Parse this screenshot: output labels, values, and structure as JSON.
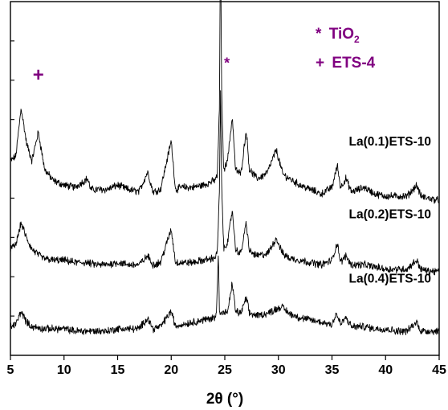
{
  "chart_data": {
    "type": "line",
    "xlabel": "2θ (°)",
    "ylabel": "",
    "xlim": [
      5,
      45
    ],
    "x_ticks": [
      5,
      10,
      15,
      20,
      25,
      30,
      35,
      40,
      45
    ],
    "y_ticks_count": 9,
    "grid": false,
    "legend": {
      "placement": "top-right",
      "color": "#800080",
      "entries": [
        {
          "symbol": "*",
          "text": "TiO",
          "subscript": "2"
        },
        {
          "symbol": "+",
          "text": "ETS-4"
        }
      ]
    },
    "markers": [
      {
        "symbol": "+",
        "x": 7.6,
        "y": 1.24,
        "color": "#800080"
      },
      {
        "symbol": "*",
        "x": 25.2,
        "y": 1.3,
        "color": "#800080"
      }
    ],
    "series": [
      {
        "name": "La(0.1)ETS-10",
        "baseline": 0.72,
        "slope": -0.0008,
        "noise": 0.014,
        "points": [
          [
            5.0,
            0.88
          ],
          [
            5.5,
            0.9
          ],
          [
            6.0,
            1.12
          ],
          [
            6.5,
            0.96
          ],
          [
            7.0,
            0.88
          ],
          [
            7.6,
            1.01
          ],
          [
            8.2,
            0.84
          ],
          [
            9.0,
            0.79
          ],
          [
            10.0,
            0.77
          ],
          [
            11.0,
            0.76
          ],
          [
            12.2,
            0.8
          ],
          [
            12.5,
            0.75
          ],
          [
            14.0,
            0.75
          ],
          [
            15.0,
            0.77
          ],
          [
            16.0,
            0.75
          ],
          [
            17.0,
            0.74
          ],
          [
            17.8,
            0.83
          ],
          [
            18.3,
            0.74
          ],
          [
            19.0,
            0.75
          ],
          [
            20.0,
            0.97
          ],
          [
            20.4,
            0.75
          ],
          [
            21.0,
            0.76
          ],
          [
            22.0,
            0.76
          ],
          [
            23.0,
            0.77
          ],
          [
            24.0,
            0.79
          ],
          [
            24.3,
            0.81
          ],
          [
            24.5,
            1.12
          ],
          [
            24.6,
            1.95
          ],
          [
            24.7,
            1.2
          ],
          [
            24.9,
            0.83
          ],
          [
            25.3,
            0.9
          ],
          [
            25.7,
            1.08
          ],
          [
            26.0,
            0.84
          ],
          [
            26.5,
            0.82
          ],
          [
            27.0,
            1.02
          ],
          [
            27.3,
            0.84
          ],
          [
            28.0,
            0.8
          ],
          [
            28.5,
            0.81
          ],
          [
            29.0,
            0.83
          ],
          [
            29.8,
            0.93
          ],
          [
            30.4,
            0.82
          ],
          [
            31.0,
            0.8
          ],
          [
            32.0,
            0.77
          ],
          [
            33.0,
            0.75
          ],
          [
            34.0,
            0.73
          ],
          [
            35.0,
            0.76
          ],
          [
            35.5,
            0.86
          ],
          [
            35.8,
            0.76
          ],
          [
            36.3,
            0.8
          ],
          [
            36.8,
            0.74
          ],
          [
            37.5,
            0.75
          ],
          [
            38.0,
            0.76
          ],
          [
            39.0,
            0.73
          ],
          [
            40.0,
            0.72
          ],
          [
            41.0,
            0.72
          ],
          [
            42.0,
            0.72
          ],
          [
            42.9,
            0.77
          ],
          [
            43.3,
            0.72
          ],
          [
            44.0,
            0.71
          ],
          [
            45.0,
            0.7
          ]
        ]
      },
      {
        "name": "La(0.2)ETS-10",
        "baseline": 0.4,
        "slope": -0.0008,
        "noise": 0.014,
        "points": [
          [
            5.0,
            0.48
          ],
          [
            5.5,
            0.5
          ],
          [
            6.0,
            0.6
          ],
          [
            6.5,
            0.53
          ],
          [
            7.0,
            0.48
          ],
          [
            8.0,
            0.44
          ],
          [
            9.0,
            0.43
          ],
          [
            10.0,
            0.43
          ],
          [
            11.0,
            0.42
          ],
          [
            12.0,
            0.42
          ],
          [
            13.0,
            0.41
          ],
          [
            14.0,
            0.41
          ],
          [
            15.0,
            0.42
          ],
          [
            16.0,
            0.41
          ],
          [
            17.0,
            0.41
          ],
          [
            17.8,
            0.45
          ],
          [
            18.3,
            0.41
          ],
          [
            19.0,
            0.42
          ],
          [
            20.0,
            0.57
          ],
          [
            20.4,
            0.42
          ],
          [
            21.0,
            0.42
          ],
          [
            22.0,
            0.42
          ],
          [
            23.0,
            0.43
          ],
          [
            24.0,
            0.44
          ],
          [
            24.3,
            0.46
          ],
          [
            24.5,
            0.75
          ],
          [
            24.6,
            1.19
          ],
          [
            24.7,
            0.78
          ],
          [
            24.9,
            0.48
          ],
          [
            25.3,
            0.52
          ],
          [
            25.7,
            0.66
          ],
          [
            26.0,
            0.48
          ],
          [
            26.5,
            0.46
          ],
          [
            27.0,
            0.6
          ],
          [
            27.3,
            0.47
          ],
          [
            28.0,
            0.45
          ],
          [
            29.0,
            0.46
          ],
          [
            29.8,
            0.53
          ],
          [
            30.4,
            0.46
          ],
          [
            31.0,
            0.44
          ],
          [
            32.0,
            0.43
          ],
          [
            33.0,
            0.42
          ],
          [
            34.0,
            0.41
          ],
          [
            35.0,
            0.43
          ],
          [
            35.5,
            0.51
          ],
          [
            35.8,
            0.42
          ],
          [
            36.3,
            0.45
          ],
          [
            36.8,
            0.41
          ],
          [
            38.0,
            0.41
          ],
          [
            39.0,
            0.4
          ],
          [
            40.0,
            0.39
          ],
          [
            41.0,
            0.39
          ],
          [
            42.0,
            0.39
          ],
          [
            42.9,
            0.43
          ],
          [
            43.3,
            0.39
          ],
          [
            44.0,
            0.38
          ],
          [
            45.0,
            0.38
          ]
        ]
      },
      {
        "name": "La(0.4)ETS-10",
        "baseline": 0.12,
        "slope": -0.0005,
        "noise": 0.014,
        "points": [
          [
            5.0,
            0.13
          ],
          [
            5.5,
            0.14
          ],
          [
            6.0,
            0.2
          ],
          [
            6.5,
            0.15
          ],
          [
            7.0,
            0.13
          ],
          [
            8.0,
            0.12
          ],
          [
            9.0,
            0.12
          ],
          [
            10.0,
            0.12
          ],
          [
            11.0,
            0.11
          ],
          [
            12.0,
            0.11
          ],
          [
            13.0,
            0.11
          ],
          [
            14.0,
            0.11
          ],
          [
            15.0,
            0.12
          ],
          [
            16.0,
            0.12
          ],
          [
            17.0,
            0.12
          ],
          [
            17.8,
            0.17
          ],
          [
            18.3,
            0.12
          ],
          [
            19.0,
            0.13
          ],
          [
            20.0,
            0.2
          ],
          [
            20.4,
            0.13
          ],
          [
            21.0,
            0.14
          ],
          [
            22.0,
            0.15
          ],
          [
            23.0,
            0.16
          ],
          [
            24.0,
            0.17
          ],
          [
            24.2,
            0.18
          ],
          [
            24.4,
            0.47
          ],
          [
            24.5,
            0.19
          ],
          [
            25.0,
            0.19
          ],
          [
            25.3,
            0.2
          ],
          [
            25.7,
            0.33
          ],
          [
            26.0,
            0.2
          ],
          [
            26.5,
            0.19
          ],
          [
            27.0,
            0.26
          ],
          [
            27.3,
            0.19
          ],
          [
            28.0,
            0.18
          ],
          [
            29.0,
            0.19
          ],
          [
            29.8,
            0.21
          ],
          [
            30.3,
            0.22
          ],
          [
            31.0,
            0.19
          ],
          [
            32.0,
            0.17
          ],
          [
            33.0,
            0.16
          ],
          [
            34.0,
            0.15
          ],
          [
            35.0,
            0.14
          ],
          [
            35.4,
            0.19
          ],
          [
            35.8,
            0.14
          ],
          [
            36.3,
            0.17
          ],
          [
            36.8,
            0.13
          ],
          [
            38.0,
            0.13
          ],
          [
            39.0,
            0.12
          ],
          [
            40.0,
            0.12
          ],
          [
            41.0,
            0.11
          ],
          [
            42.0,
            0.11
          ],
          [
            42.9,
            0.15
          ],
          [
            43.3,
            0.11
          ],
          [
            44.0,
            0.11
          ],
          [
            45.0,
            0.11
          ]
        ]
      }
    ]
  }
}
